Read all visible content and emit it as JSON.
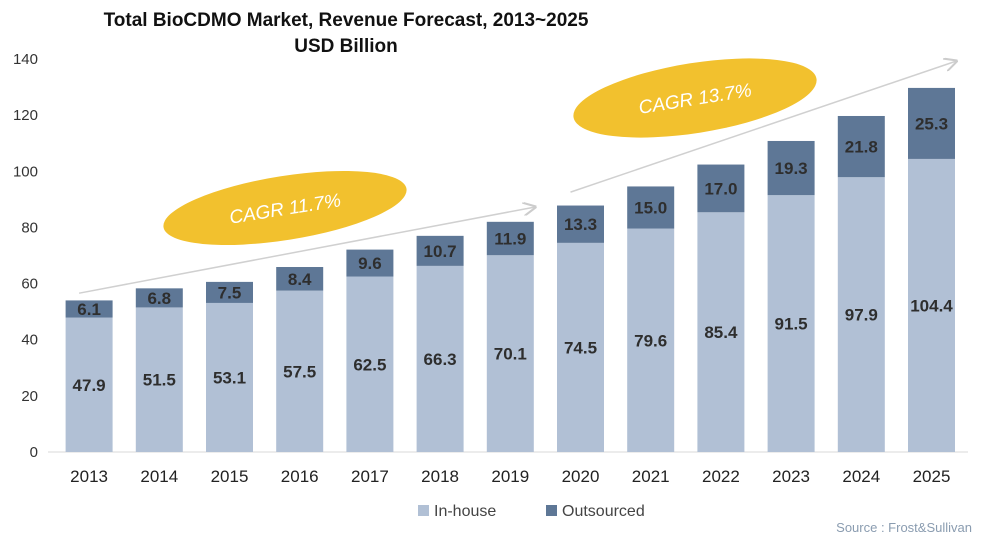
{
  "chart_data": {
    "type": "bar",
    "stacked": true,
    "title": "Total BioCDMO Market, Revenue Forecast, 2013~2025",
    "subtitle": "USD Billion",
    "categories": [
      "2013",
      "2014",
      "2015",
      "2016",
      "2017",
      "2018",
      "2019",
      "2020",
      "2021",
      "2022",
      "2023",
      "2024",
      "2025"
    ],
    "series": [
      {
        "name": "In-house",
        "color": "#b1c0d5",
        "values": [
          47.9,
          51.5,
          53.1,
          57.5,
          62.5,
          66.3,
          70.1,
          74.5,
          79.6,
          85.4,
          91.5,
          97.9,
          104.4
        ],
        "labels": [
          "47.9",
          "51.5",
          "53.1",
          "57.5",
          "62.5",
          "66.3",
          "70.1",
          "74.5",
          "79.6",
          "85.4",
          "91.5",
          "97.9",
          "104.4"
        ]
      },
      {
        "name": "Outsourced",
        "color": "#5e7796",
        "values": [
          6.1,
          6.8,
          7.5,
          8.4,
          9.6,
          10.7,
          11.9,
          13.3,
          15.0,
          17.0,
          19.3,
          21.8,
          25.3
        ],
        "labels": [
          "6.1",
          "6.8",
          "7.5",
          "8.4",
          "9.6",
          "10.7",
          "11.9",
          "13.3",
          "15.0",
          "17.0",
          "19.3",
          "21.8",
          "25.3"
        ]
      }
    ],
    "ylim": [
      0,
      140
    ],
    "yticks": [
      "0",
      "20",
      "40",
      "60",
      "80",
      "100",
      "120",
      "140"
    ],
    "xlabel": "",
    "ylabel": "",
    "legend": "bottom-center",
    "grid": false,
    "annotations": [
      {
        "text": "CAGR 11.7%",
        "from": "2013",
        "to": "2019",
        "color": "#f2c12e"
      },
      {
        "text": "CAGR 13.7%",
        "from": "2020",
        "to": "2025",
        "color": "#f2c12e"
      }
    ],
    "source": "Source : Frost&Sullivan"
  }
}
